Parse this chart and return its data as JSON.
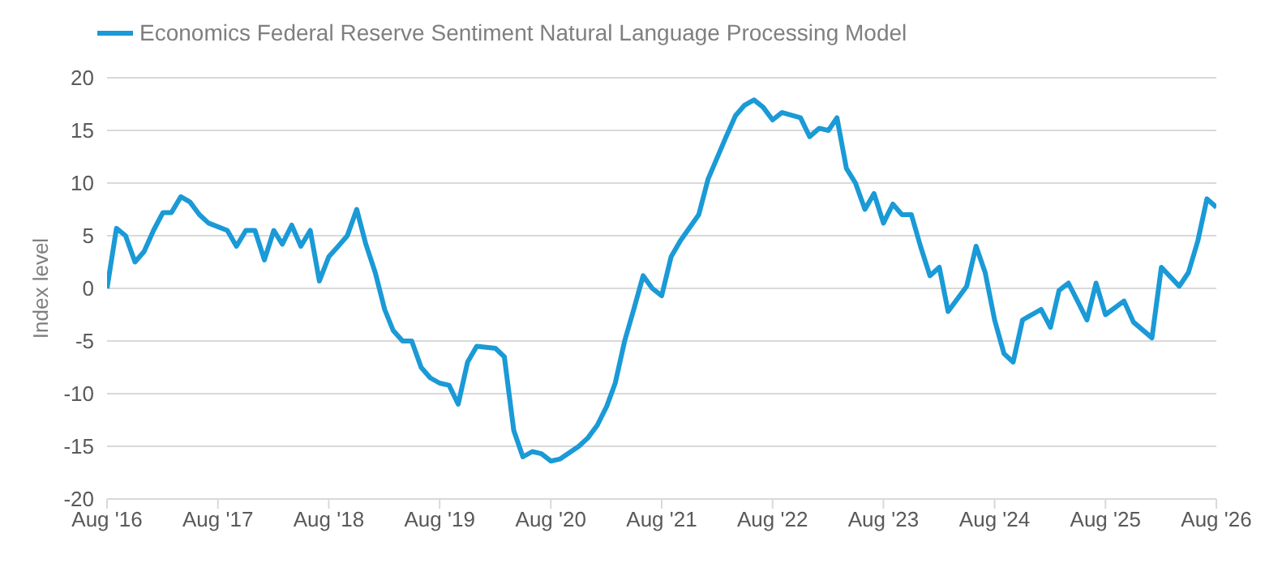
{
  "chart_data": {
    "type": "line",
    "ylabel": "Index level",
    "legend": "top left",
    "grid": "y",
    "marker": "none",
    "line_style": "solid",
    "xlim": [
      "2016-08",
      "2026-08"
    ],
    "xticks": [
      {
        "value": "2016-08",
        "label": "Aug '16"
      },
      {
        "value": "2017-08",
        "label": "Aug '17"
      },
      {
        "value": "2018-08",
        "label": "Aug '18"
      },
      {
        "value": "2019-08",
        "label": "Aug '19"
      },
      {
        "value": "2020-08",
        "label": "Aug '20"
      },
      {
        "value": "2021-08",
        "label": "Aug '21"
      },
      {
        "value": "2022-08",
        "label": "Aug '22"
      },
      {
        "value": "2023-08",
        "label": "Aug '23"
      },
      {
        "value": "2024-08",
        "label": "Aug '24"
      },
      {
        "value": "2025-08",
        "label": "Aug '25"
      },
      {
        "value": "2026-08",
        "label": "Aug '26"
      }
    ],
    "ylim": [
      -20,
      20
    ],
    "yticks": [
      -20,
      -15,
      -10,
      -5,
      0,
      5,
      10,
      15,
      20
    ],
    "series": [
      {
        "name": "Economics Federal Reserve Sentiment Natural Language Processing Model",
        "color": "#1a9ad6",
        "x": [
          "2016-08",
          "2016-09",
          "2016-10",
          "2016-11",
          "2016-12",
          "2017-01",
          "2017-02",
          "2017-03",
          "2017-04",
          "2017-05",
          "2017-06",
          "2017-07",
          "2017-09",
          "2017-10",
          "2017-11",
          "2017-12",
          "2018-01",
          "2018-02",
          "2018-03",
          "2018-04",
          "2018-05",
          "2018-06",
          "2018-07",
          "2018-08",
          "2018-09",
          "2018-10",
          "2018-11",
          "2018-12",
          "2019-01",
          "2019-02",
          "2019-03",
          "2019-04",
          "2019-05",
          "2019-06",
          "2019-07",
          "2019-08",
          "2019-09",
          "2019-10",
          "2019-11",
          "2019-12",
          "2020-02",
          "2020-03",
          "2020-04",
          "2020-05",
          "2020-06",
          "2020-07",
          "2020-08",
          "2020-09",
          "2020-11",
          "2020-12",
          "2021-01",
          "2021-02",
          "2021-03",
          "2021-04",
          "2021-05",
          "2021-06",
          "2021-07",
          "2021-08",
          "2021-09",
          "2021-10",
          "2021-12",
          "2022-01",
          "2022-03",
          "2022-04",
          "2022-05",
          "2022-06",
          "2022-07",
          "2022-08",
          "2022-09",
          "2022-11",
          "2022-12",
          "2023-01",
          "2023-02",
          "2023-03",
          "2023-04",
          "2023-05",
          "2023-06",
          "2023-07",
          "2023-08",
          "2023-09",
          "2023-10",
          "2023-11",
          "2023-12",
          "2024-01",
          "2024-02",
          "2024-03",
          "2024-05",
          "2024-06",
          "2024-07",
          "2024-08",
          "2024-09",
          "2024-10",
          "2024-11",
          "2025-01",
          "2025-02",
          "2025-03",
          "2025-04",
          "2025-05",
          "2025-06",
          "2025-07",
          "2025-08",
          "2025-10",
          "2025-11",
          "2026-01",
          "2026-02",
          "2026-04",
          "2026-05",
          "2026-06",
          "2026-07",
          "2026-08"
        ],
        "values": [
          0,
          5.7,
          5,
          2.5,
          3.5,
          5.5,
          7.2,
          7.2,
          8.7,
          8.2,
          7,
          6.2,
          5.5,
          4,
          5.5,
          5.5,
          2.7,
          5.5,
          4.2,
          6,
          4,
          5.5,
          0.7,
          3,
          4,
          5,
          7.5,
          4.2,
          1.5,
          -2,
          -4,
          -5,
          -5,
          -7.5,
          -8.5,
          -9,
          -9.2,
          -11,
          -7,
          -5.5,
          -5.7,
          -6.5,
          -13.5,
          -16,
          -15.5,
          -15.7,
          -16.4,
          -16.2,
          -15,
          -14.2,
          -13,
          -11.2,
          -9,
          -5,
          -2,
          1.2,
          0,
          -0.7,
          3,
          4.5,
          7,
          10.4,
          14.4,
          16.4,
          17.4,
          17.9,
          17.2,
          16,
          16.7,
          16.2,
          14.4,
          15.2,
          15,
          16.2,
          11.4,
          10,
          7.5,
          9,
          6.2,
          8,
          7,
          7,
          4,
          1.2,
          2,
          -2.2,
          0.2,
          4,
          1.5,
          -3,
          -6.2,
          -7,
          -3,
          -2,
          -3.7,
          -0.2,
          0.5,
          -1.2,
          -3,
          0.5,
          -2.5,
          -1.2,
          -3.2,
          -4.7,
          2,
          0.2,
          1.5,
          4.5,
          8.5,
          7.7
        ]
      }
    ]
  }
}
